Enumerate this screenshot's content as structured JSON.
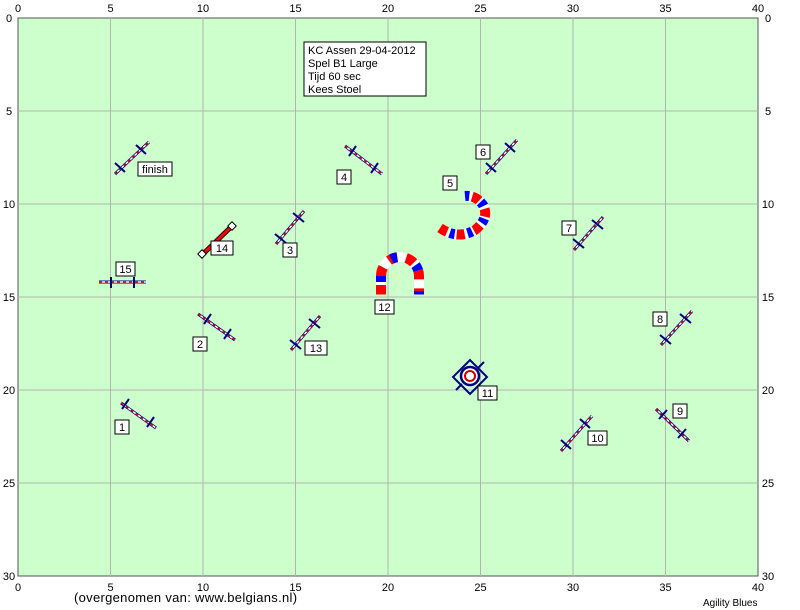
{
  "info": {
    "lines": [
      "KC Assen 29-04-2012",
      "Spel B1 Large",
      "Tijd 60 sec",
      "Kees Stoel"
    ]
  },
  "axes": {
    "x_ticks": [
      "0",
      "5",
      "10",
      "15",
      "20",
      "25",
      "30",
      "35",
      "40"
    ],
    "y_ticks": [
      "0",
      "5",
      "10",
      "15",
      "20",
      "25",
      "30"
    ]
  },
  "labels": {
    "l1": "1",
    "l2": "2",
    "l3": "3",
    "l4": "4",
    "l5": "5",
    "l6": "6",
    "l7": "7",
    "l8": "8",
    "l9": "9",
    "l10": "10",
    "l11": "11",
    "l12": "12",
    "l13": "13",
    "l14": "14",
    "l15": "15",
    "finish": "finish"
  },
  "footer": {
    "credit": "(overgenomen van: www.belgians.nl)",
    "brand": "Agility Blues"
  },
  "colors": {
    "field": "#ccffcc",
    "grid": "#b4b4b4",
    "pole": "#cc0000",
    "wing": "#000080",
    "tunnel_red": "#ff0000",
    "tunnel_blue": "#0000ff"
  }
}
